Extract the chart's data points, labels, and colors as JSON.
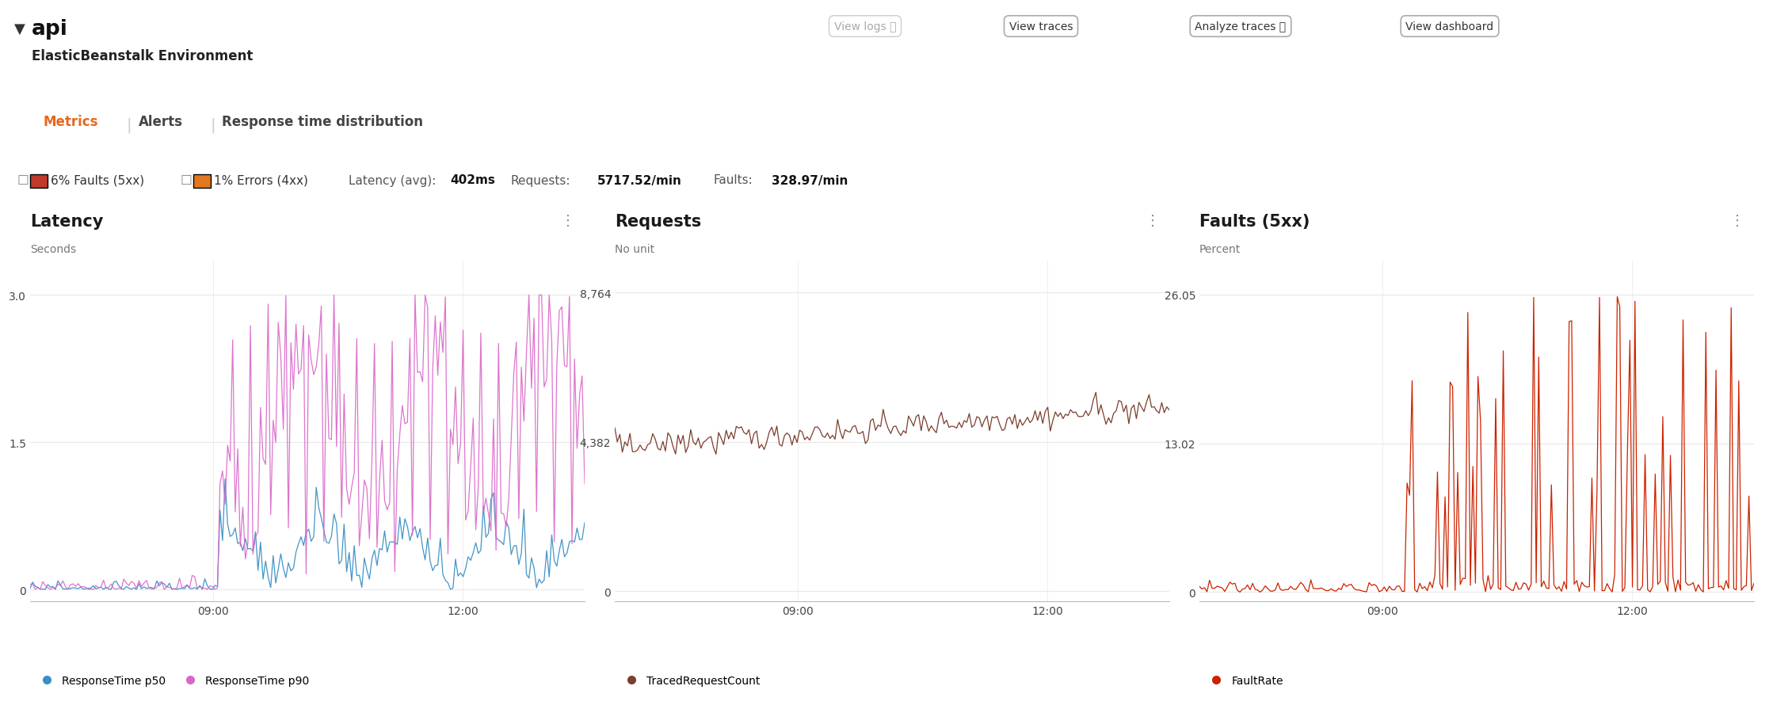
{
  "title": "api",
  "subtitle": "ElasticBeanstalk Environment",
  "tab_active": "Metrics",
  "tab_inactive": [
    "Alerts",
    "Response time distribution"
  ],
  "tab_active_color": "#e8671b",
  "buttons": [
    "View logs ⧉",
    "View traces",
    "Analyze traces ⧉",
    "View dashboard"
  ],
  "badge_faults": "6% Faults (5xx)",
  "badge_errors": "1% Errors (4xx)",
  "badge_faults_color": "#c0392b",
  "badge_errors_color": "#e07820",
  "summary_latency_label": "Latency (avg):",
  "summary_latency_val": "402ms",
  "summary_requests_label": "Requests:",
  "summary_requests_val": "5717.52/min",
  "summary_faults_label": "Faults:",
  "summary_faults_val": "328.97/min",
  "chart1_title": "Latency",
  "chart1_ylabel": "Seconds",
  "chart1_yticks": [
    0,
    1.5,
    3.0
  ],
  "chart1_ylim": [
    -0.12,
    3.35
  ],
  "chart1_color_p50": "#3a8fc4",
  "chart1_color_p90": "#d966c8",
  "chart1_legend_p50": "ResponseTime p50",
  "chart1_legend_p90": "ResponseTime p90",
  "chart2_title": "Requests",
  "chart2_ylabel": "No unit",
  "chart2_yticks": [
    0,
    4382,
    8764
  ],
  "chart2_ytick_labels": [
    "0",
    "4,382",
    "8,764"
  ],
  "chart2_ylim": [
    -300,
    9700
  ],
  "chart2_color": "#7b3f2e",
  "chart2_legend": "TracedRequestCount",
  "chart3_title": "Faults (5xx)",
  "chart3_ylabel": "Percent",
  "chart3_yticks": [
    0,
    13.02,
    26.05
  ],
  "chart3_ytick_labels": [
    "0",
    "13.02",
    "26.05"
  ],
  "chart3_ylim": [
    -0.8,
    29
  ],
  "chart3_color": "#cc2200",
  "chart3_legend": "FaultRate",
  "xtick_labels": [
    "09:00",
    "12:00"
  ],
  "xtick_pos": [
    0.33,
    0.78
  ],
  "bg_color": "#ffffff",
  "text_dark": "#1a1a1a",
  "text_mid": "#444444",
  "text_gray": "#777777",
  "border_color": "#dddddd",
  "grid_color": "#e8e8e8",
  "tab_underline_color": "#1a1a1a"
}
